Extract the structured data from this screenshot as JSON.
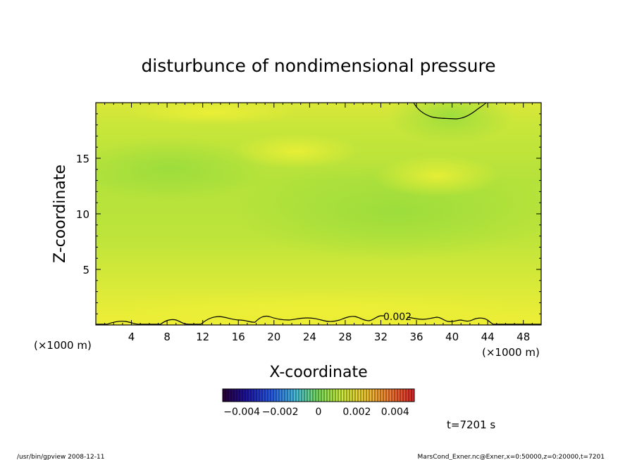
{
  "chart_data": {
    "type": "heatmap",
    "title": "disturbunce of nondimensional pressure",
    "xlabel": "X-coordinate",
    "ylabel": "Z-coordinate",
    "x_unit": "(×1000 m)",
    "z_unit": "(×1000 m)",
    "x_ticks": [
      "4",
      "8",
      "12",
      "16",
      "20",
      "24",
      "28",
      "32",
      "36",
      "40",
      "44",
      "48"
    ],
    "z_ticks": [
      "5",
      "10",
      "15"
    ],
    "xlim": [
      0,
      50
    ],
    "zlim": [
      0,
      20
    ],
    "colorbar": {
      "min": -0.005,
      "max": 0.005,
      "tick_labels": [
        "−0.004",
        "−0.002",
        "0",
        "0.002",
        "0.004"
      ],
      "tick_values": [
        -0.004,
        -0.002,
        0,
        0.002,
        0.004
      ]
    },
    "contours": [
      {
        "level": 0.002,
        "label": "0.002",
        "location": "near surface"
      },
      {
        "level": 0.002,
        "label": "",
        "location": "top near x 36–44"
      }
    ],
    "field_description_values": {
      "background": 0.0022,
      "greener_band_z_km": [
        9,
        16
      ],
      "greenest_region_top_x_km": [
        36,
        44
      ]
    },
    "time_label": "t=7201 s",
    "footer_left": "/usr/bin/gpview   2008-12-11",
    "footer_right": "MarsCond_Exner.nc@Exner,x=0:50000,z=0:20000,t=7201",
    "colors": {
      "yellow": "#f2f034",
      "green": "#a9e03a",
      "contour": "#000000"
    }
  }
}
